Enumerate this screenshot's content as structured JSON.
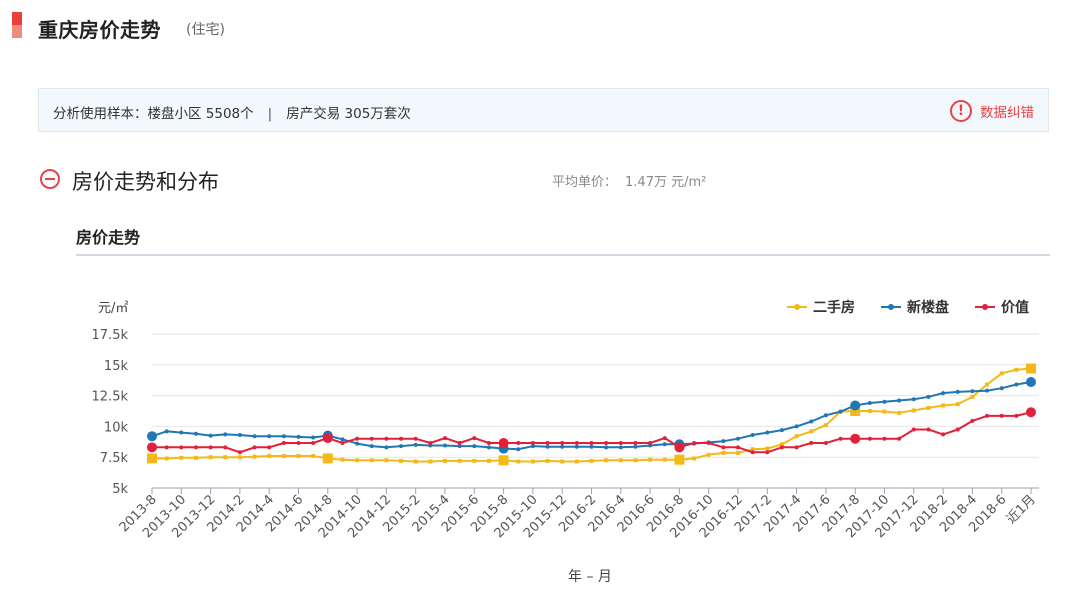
{
  "header": {
    "title": "重庆房价走势",
    "subtitle": "(住宅)"
  },
  "info": {
    "sample_text": "分析使用样本：楼盘小区 5508个",
    "separator": "|",
    "trade_text": "房产交易 305万套次",
    "error_label": "数据纠错",
    "error_icon": "exclamation-icon"
  },
  "section": {
    "title": "房价走势和分布",
    "avg_label": "平均单价：",
    "avg_value": "1.47万 元/m²",
    "chart_title": "房价走势"
  },
  "colors": {
    "accent": "#e8403c",
    "secondhand": "#f5b917",
    "newhouse": "#1f78b4",
    "value": "#e3203b"
  },
  "chart_data": {
    "type": "line",
    "ylabel": "元/㎡",
    "xlabel": "年 – 月",
    "ylim": [
      5000,
      17500
    ],
    "yticks": [
      5000,
      7500,
      10000,
      12500,
      15000,
      17500
    ],
    "ytick_labels": [
      "5k",
      "7.5k",
      "10k",
      "12.5k",
      "15k",
      "17.5k"
    ],
    "grid": true,
    "legend_position": "top-right",
    "x": [
      "2013-8",
      "2013-9",
      "2013-10",
      "2013-11",
      "2013-12",
      "2014-1",
      "2014-2",
      "2014-3",
      "2014-4",
      "2014-5",
      "2014-6",
      "2014-7",
      "2014-8",
      "2014-9",
      "2014-10",
      "2014-11",
      "2014-12",
      "2015-1",
      "2015-2",
      "2015-3",
      "2015-4",
      "2015-5",
      "2015-6",
      "2015-7",
      "2015-8",
      "2015-9",
      "2015-10",
      "2015-11",
      "2015-12",
      "2016-1",
      "2016-2",
      "2016-3",
      "2016-4",
      "2016-5",
      "2016-6",
      "2016-7",
      "2016-8",
      "2016-9",
      "2016-10",
      "2016-11",
      "2016-12",
      "2017-1",
      "2017-2",
      "2017-3",
      "2017-4",
      "2017-5",
      "2017-6",
      "2017-7",
      "2017-8",
      "2017-9",
      "2017-10",
      "2017-11",
      "2017-12",
      "2018-1",
      "2018-2",
      "2018-3",
      "2018-4",
      "2018-5",
      "2018-6",
      "2018-7",
      "近1月"
    ],
    "x_tick_labels": [
      "2013-8",
      "2013-10",
      "2013-12",
      "2014-2",
      "2014-4",
      "2014-6",
      "2014-8",
      "2014-10",
      "2014-12",
      "2015-2",
      "2015-4",
      "2015-6",
      "2015-8",
      "2015-10",
      "2015-12",
      "2016-2",
      "2016-4",
      "2016-6",
      "2016-8",
      "2016-10",
      "2016-12",
      "2017-2",
      "2017-4",
      "2017-6",
      "2017-8",
      "2017-10",
      "2017-12",
      "2018-2",
      "2018-4",
      "2018-6",
      "近1月"
    ],
    "series": [
      {
        "name": "二手房",
        "color": "#f5b917",
        "marker": "square",
        "values": [
          7400,
          7400,
          7450,
          7450,
          7500,
          7500,
          7500,
          7550,
          7600,
          7600,
          7600,
          7600,
          7400,
          7300,
          7250,
          7250,
          7250,
          7200,
          7150,
          7150,
          7200,
          7200,
          7200,
          7200,
          7250,
          7150,
          7150,
          7200,
          7150,
          7150,
          7200,
          7250,
          7250,
          7250,
          7300,
          7300,
          7300,
          7400,
          7700,
          7850,
          7850,
          8150,
          8200,
          8550,
          9200,
          9600,
          10100,
          11200,
          11250,
          11250,
          11200,
          11100,
          11300,
          11500,
          11700,
          11800,
          12400,
          13400,
          14300,
          14600,
          14700
        ],
        "highlight_indices": [
          0,
          12,
          24,
          36,
          48,
          60
        ]
      },
      {
        "name": "新楼盘",
        "color": "#1f78b4",
        "marker": "circle",
        "values": [
          9200,
          9600,
          9500,
          9400,
          9250,
          9350,
          9300,
          9200,
          9200,
          9200,
          9150,
          9100,
          9250,
          8950,
          8600,
          8400,
          8300,
          8400,
          8500,
          8450,
          8450,
          8400,
          8400,
          8300,
          8200,
          8150,
          8400,
          8350,
          8350,
          8350,
          8350,
          8300,
          8300,
          8350,
          8450,
          8550,
          8550,
          8600,
          8700,
          8800,
          9000,
          9300,
          9500,
          9700,
          10000,
          10400,
          10900,
          11200,
          11700,
          11900,
          12000,
          12100,
          12200,
          12400,
          12700,
          12800,
          12850,
          12900,
          13100,
          13400,
          13600
        ],
        "highlight_indices": [
          0,
          12,
          24,
          36,
          48,
          60
        ]
      },
      {
        "name": "价值",
        "color": "#e3203b",
        "marker": "circle",
        "values": [
          8300,
          8300,
          8300,
          8300,
          8300,
          8300,
          7900,
          8300,
          8300,
          8650,
          8650,
          8650,
          9050,
          8650,
          9000,
          9000,
          9000,
          9000,
          9000,
          8650,
          9050,
          8650,
          9050,
          8650,
          8650,
          8650,
          8650,
          8650,
          8650,
          8650,
          8650,
          8650,
          8650,
          8650,
          8650,
          9050,
          8300,
          8650,
          8650,
          8300,
          8300,
          7900,
          7900,
          8300,
          8300,
          8650,
          8650,
          9000,
          9000,
          9000,
          9000,
          9000,
          9750,
          9750,
          9350,
          9750,
          10450,
          10850,
          10850,
          10850,
          11150
        ],
        "highlight_indices": [
          0,
          12,
          24,
          36,
          48,
          60
        ]
      }
    ]
  }
}
